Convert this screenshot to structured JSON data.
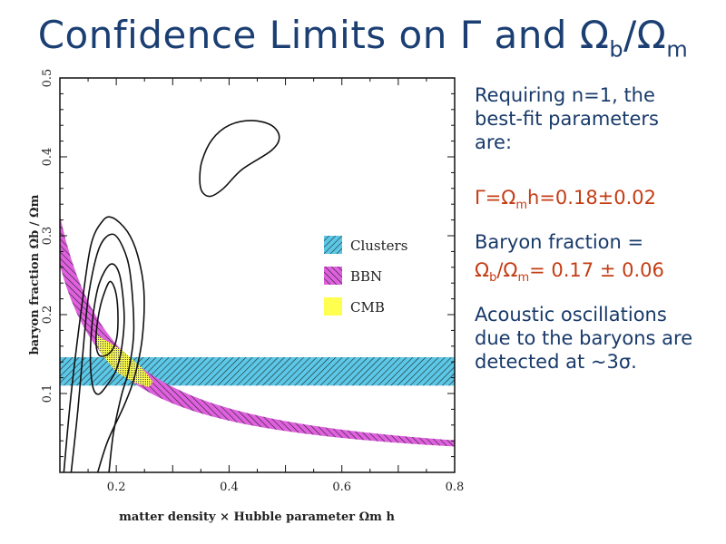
{
  "slide": {
    "title": {
      "main": "Confidence Limits on Γ and Ω",
      "sub1": "b",
      "slash": "/Ω",
      "sub2": "m"
    },
    "text": {
      "intro": "Requiring n=1, the best-fit parameters are:",
      "gamma_pre": "Γ=Ω",
      "gamma_sub": "m",
      "gamma_post": "h=0.18±0.02",
      "baryon_label": "Baryon fraction =",
      "baryon_pre": "Ω",
      "baryon_sub1": "b",
      "baryon_mid": "/Ω",
      "baryon_sub2": "m",
      "baryon_post": "= 0.17 ± 0.06",
      "acoustic": "Acoustic oscillations due to the baryons are detected at ~3σ."
    },
    "colors": {
      "text": "#183a6a",
      "highlight": "#c43d15"
    }
  },
  "chart_data": {
    "type": "contour",
    "xlabel": "matter density × Hubble parameter  Ωm h",
    "ylabel": "baryon fraction  Ωb / Ωm",
    "xlim": [
      0.1,
      0.8
    ],
    "ylim": [
      0,
      0.5
    ],
    "xticks": [
      "0.2",
      "0.4",
      "0.6",
      "0.8"
    ],
    "xtick_values": [
      0.2,
      0.4,
      0.6,
      0.8
    ],
    "yticks": [
      "0.1",
      "0.2",
      "0.3",
      "0.4",
      "0.5"
    ],
    "ytick_values": [
      0.1,
      0.2,
      0.3,
      0.4,
      0.5
    ],
    "legend": [
      {
        "label": "Clusters",
        "color": "#5bc8e8"
      },
      {
        "label": "BBN",
        "color": "#e060e0"
      },
      {
        "label": "CMB",
        "color": "#ffff50"
      }
    ],
    "legend_position": "right-middle",
    "clusters_band": {
      "y_min": 0.11,
      "y_max": 0.146
    },
    "bbn_band": {
      "k_low": 0.0262,
      "k_high": 0.0325,
      "form": "y = k / x"
    },
    "cmb_region": {
      "center": [
        0.215,
        0.142
      ],
      "points": [
        [
          0.165,
          0.175
        ],
        [
          0.175,
          0.17
        ],
        [
          0.21,
          0.155
        ],
        [
          0.245,
          0.133
        ],
        [
          0.265,
          0.115
        ],
        [
          0.258,
          0.108
        ],
        [
          0.235,
          0.113
        ],
        [
          0.2,
          0.127
        ],
        [
          0.172,
          0.152
        ],
        [
          0.163,
          0.167
        ]
      ]
    },
    "contours": [
      {
        "closed": true,
        "points": [
          [
            0.19,
            0.242
          ],
          [
            0.2,
            0.225
          ],
          [
            0.203,
            0.19
          ],
          [
            0.199,
            0.165
          ],
          [
            0.186,
            0.15
          ],
          [
            0.169,
            0.149
          ],
          [
            0.164,
            0.17
          ],
          [
            0.17,
            0.205
          ],
          [
            0.18,
            0.23
          ]
        ]
      },
      {
        "closed": true,
        "points": [
          [
            0.19,
            0.264
          ],
          [
            0.206,
            0.25
          ],
          [
            0.214,
            0.2
          ],
          [
            0.21,
            0.16
          ],
          [
            0.2,
            0.13
          ],
          [
            0.183,
            0.11
          ],
          [
            0.168,
            0.099
          ],
          [
            0.158,
            0.11
          ],
          [
            0.154,
            0.15
          ],
          [
            0.159,
            0.2
          ],
          [
            0.17,
            0.24
          ]
        ]
      },
      {
        "closed": false,
        "points": [
          [
            0.12,
            0.0
          ],
          [
            0.132,
            0.08
          ],
          [
            0.143,
            0.17
          ],
          [
            0.152,
            0.23
          ],
          [
            0.17,
            0.285
          ],
          [
            0.193,
            0.302
          ],
          [
            0.212,
            0.285
          ],
          [
            0.225,
            0.25
          ],
          [
            0.231,
            0.18
          ],
          [
            0.222,
            0.13
          ],
          [
            0.209,
            0.097
          ],
          [
            0.195,
            0.05
          ],
          [
            0.187,
            0.0
          ]
        ]
      },
      {
        "closed": false,
        "points": [
          [
            0.107,
            0.0
          ],
          [
            0.12,
            0.1
          ],
          [
            0.139,
            0.212
          ],
          [
            0.155,
            0.288
          ],
          [
            0.175,
            0.318
          ],
          [
            0.193,
            0.323
          ],
          [
            0.22,
            0.305
          ],
          [
            0.238,
            0.275
          ],
          [
            0.249,
            0.23
          ],
          [
            0.246,
            0.17
          ],
          [
            0.232,
            0.12
          ],
          [
            0.214,
            0.085
          ],
          [
            0.185,
            0.04
          ],
          [
            0.167,
            0.0
          ]
        ]
      },
      {
        "closed": true,
        "points": [
          [
            0.44,
            0.446
          ],
          [
            0.475,
            0.44
          ],
          [
            0.489,
            0.425
          ],
          [
            0.475,
            0.408
          ],
          [
            0.423,
            0.384
          ],
          [
            0.39,
            0.36
          ],
          [
            0.367,
            0.35
          ],
          [
            0.352,
            0.356
          ],
          [
            0.348,
            0.372
          ],
          [
            0.352,
            0.395
          ],
          [
            0.37,
            0.422
          ],
          [
            0.4,
            0.44
          ]
        ]
      }
    ]
  }
}
